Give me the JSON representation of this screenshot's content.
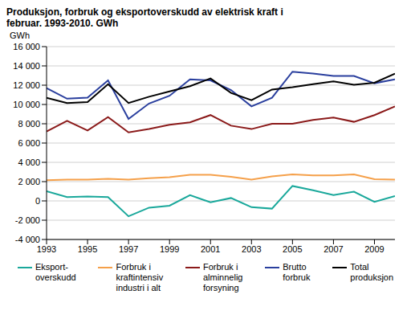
{
  "chart_data": {
    "type": "line",
    "title": "Produksjon, forbruk og eksportoverskudd av elektrisk kraft i februar. 1993-2010. GWh",
    "y_label": "GWh",
    "x": [
      1993,
      1994,
      1995,
      1996,
      1997,
      1998,
      1999,
      2000,
      2001,
      2002,
      2003,
      2004,
      2005,
      2006,
      2007,
      2008,
      2009,
      2010
    ],
    "xlim": [
      1993,
      2010
    ],
    "xticks": [
      1993,
      1995,
      1997,
      1999,
      2001,
      2003,
      2005,
      2007,
      2009
    ],
    "ylim": [
      -4000,
      16000
    ],
    "yticks": [
      {
        "value": -4000,
        "label": "-4 000"
      },
      {
        "value": -2000,
        "label": "-2 000"
      },
      0,
      {
        "value": 2000,
        "label": "2 000"
      },
      {
        "value": 4000,
        "label": "4 000"
      },
      {
        "value": 6000,
        "label": "6 000"
      },
      {
        "value": 8000,
        "label": "8 000"
      },
      {
        "value": 10000,
        "label": "10 000"
      },
      {
        "value": 12000,
        "label": "12 000"
      },
      {
        "value": 14000,
        "label": "14 000"
      },
      {
        "value": 16000,
        "label": "16 000"
      }
    ],
    "grid": true,
    "legend": "bottom",
    "series": [
      {
        "name": "Eksport-\noverskudd",
        "color": "#1aa89b",
        "values": [
          1000,
          400,
          450,
          400,
          -1600,
          -700,
          -500,
          600,
          -150,
          300,
          -650,
          -800,
          1550,
          1100,
          600,
          950,
          -100,
          500
        ]
      },
      {
        "name": "Forbruk i\nkraftintensiv\nindustri i alt",
        "color": "#f5a04a",
        "values": [
          2150,
          2200,
          2200,
          2300,
          2200,
          2350,
          2450,
          2700,
          2700,
          2500,
          2200,
          2550,
          2750,
          2650,
          2650,
          2750,
          2250,
          2200
        ]
      },
      {
        "name": "Forbruk i\nalminnelig\nforsyning",
        "color": "#8b1a1a",
        "values": [
          7200,
          8300,
          7300,
          8700,
          7100,
          7450,
          7900,
          8150,
          8900,
          7800,
          7450,
          8000,
          8000,
          8400,
          8650,
          8200,
          8900,
          9800
        ]
      },
      {
        "name": "Brutto\nforbruk",
        "color": "#2a3f9e",
        "values": [
          11700,
          10600,
          10700,
          12500,
          8500,
          10100,
          10900,
          12600,
          12500,
          11500,
          9800,
          10700,
          13400,
          13200,
          12950,
          12950,
          12200,
          12600
        ]
      },
      {
        "name": "Total\nproduksjon",
        "color": "#000000",
        "values": [
          10700,
          10150,
          10250,
          12100,
          10150,
          10800,
          11350,
          11900,
          12700,
          11200,
          10450,
          11550,
          11800,
          12100,
          12400,
          12050,
          12250,
          13200
        ]
      }
    ]
  }
}
